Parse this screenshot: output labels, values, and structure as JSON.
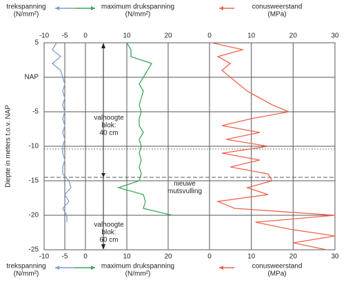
{
  "chart_data": {
    "type": "line",
    "y_label": "Diepte in meters t.o.v. NAP",
    "ylim": [
      -25,
      5
    ],
    "yticks": [
      5,
      {
        "value": 0,
        "label": "NAP"
      },
      -5,
      -10,
      -15,
      -20,
      -25
    ],
    "xlim": [
      -10,
      20
    ],
    "xticks": [
      -10,
      -5,
      0,
      10,
      20
    ],
    "x2lim": [
      0,
      30
    ],
    "x2ticks": [
      0,
      10,
      20,
      30
    ],
    "y": [
      5,
      4,
      3,
      2,
      1,
      0,
      -1,
      -2,
      -3,
      -4,
      -5,
      -6,
      -7,
      -8,
      -9,
      -10,
      -11,
      -12,
      -13,
      -14,
      -15,
      -16,
      -17,
      -18,
      -19,
      -20,
      -21,
      -22,
      -23,
      -24,
      -25
    ],
    "series": [
      {
        "name": "trekspanning",
        "unit": "(N/mm²)",
        "color": "#7f9cc8",
        "values": [
          -7,
          -8,
          -6,
          -8,
          -6,
          -5.5,
          -5,
          -5.5,
          -5,
          -5.5,
          -5,
          -5.5,
          -5,
          -5.5,
          -5,
          -5.5,
          -5.5,
          -5,
          -5.5,
          -5.5,
          -4,
          -3.5,
          -5,
          -4,
          -5.5,
          -4.5,
          -4.5,
          null,
          null,
          null,
          null
        ]
      },
      {
        "name": "maximum drukspanning",
        "unit": "(N/mm²)",
        "color": "#3aa65a",
        "values": [
          10,
          11,
          11,
          16,
          15,
          14,
          13,
          14,
          13.5,
          13,
          13.5,
          13,
          13,
          14,
          13,
          13.5,
          13,
          13.5,
          13,
          13.5,
          13,
          8,
          14,
          14.5,
          14,
          21,
          null,
          null,
          null,
          null,
          null
        ]
      },
      {
        "name": "conusweerstand",
        "unit": "(MPa)",
        "color": "#f0624a",
        "axis": "x2",
        "values": [
          0.5,
          8,
          2,
          5,
          3,
          5,
          7,
          9,
          12,
          15,
          19,
          10,
          3,
          12,
          4,
          14,
          3,
          12,
          5,
          14,
          15,
          9,
          14,
          2,
          6,
          30,
          11,
          19,
          30,
          20,
          28
        ]
      }
    ],
    "annotations": [
      {
        "text": [
          "valhoogte",
          "blok:",
          "40 cm"
        ],
        "y": -7
      },
      {
        "text": [
          "nieuwe",
          "mutsvulling"
        ],
        "y": -16
      },
      {
        "text": [
          "valhoogte",
          "blok:",
          "60 cm"
        ],
        "y": -22.5
      }
    ]
  }
}
